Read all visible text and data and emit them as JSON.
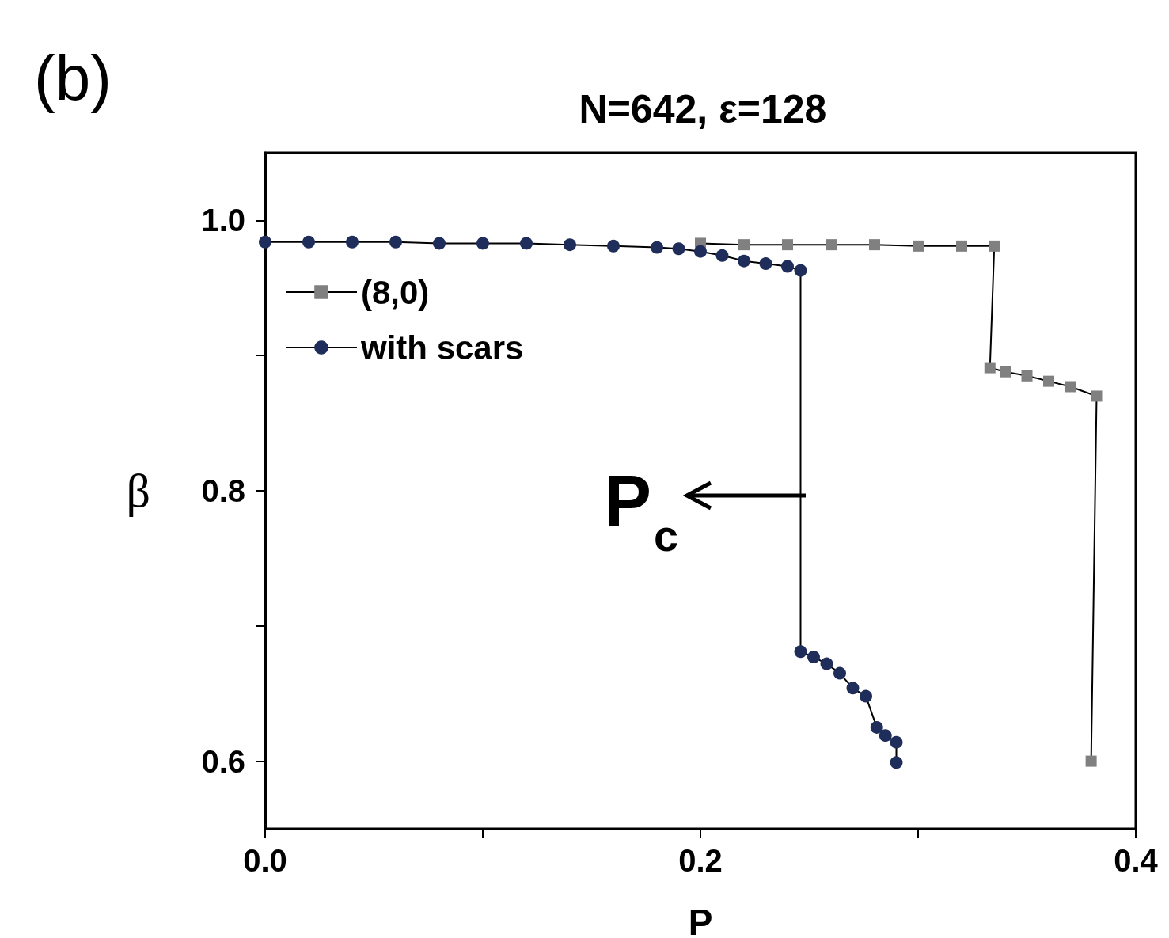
{
  "chart_data": {
    "type": "line",
    "title": "N=642, ε=128",
    "xlabel": "P",
    "ylabel": "β",
    "annotations": [
      "(b)",
      "P$_{c}$"
    ],
    "xlim": [
      0.0,
      0.4
    ],
    "xticks": [
      {
        "value": 0,
        "label": "0.0"
      },
      {
        "value": 0.1,
        "label": null
      },
      0.2,
      {
        "value": 0.3,
        "label": null
      },
      {
        "value": 0.4,
        "label": "0.4"
      }
    ],
    "ylim": [
      0.55,
      1.05
    ],
    "yticks": [
      0.6,
      {
        "value": 0.7,
        "label": null
      },
      0.8,
      {
        "value": 0.9,
        "label": null
      },
      {
        "value": 1,
        "label": "1.0"
      }
    ],
    "legend": "top left",
    "grid": false,
    "series": [
      {
        "name": "(8,0)",
        "color": "#808080",
        "marker": "square",
        "x": [
          0.2,
          0.22,
          0.24,
          0.26,
          0.28,
          0.3,
          0.32,
          0.335,
          0.333,
          0.34,
          0.35,
          0.36,
          0.37,
          0.382,
          0.3795
        ],
        "values": [
          0.983,
          0.982,
          0.982,
          0.982,
          0.982,
          0.981,
          0.981,
          0.981,
          0.891,
          0.888,
          0.885,
          0.881,
          0.877,
          0.87,
          0.6
        ]
      },
      {
        "name": "with scars",
        "color": "#1f2d5a",
        "marker": "circle",
        "x": [
          0,
          0.02,
          0.04,
          0.06,
          0.08,
          0.1,
          0.12,
          0.14,
          0.16,
          0.18,
          0.19,
          0.2,
          0.21,
          0.22,
          0.23,
          0.24,
          0.246,
          0.246,
          0.252,
          0.258,
          0.264,
          0.27,
          0.276,
          0.281,
          0.285,
          0.29,
          0.29
        ],
        "values": [
          0.984,
          0.984,
          0.984,
          0.984,
          0.983,
          0.983,
          0.983,
          0.982,
          0.981,
          0.98,
          0.979,
          0.977,
          0.974,
          0.97,
          0.968,
          0.966,
          0.963,
          0.681,
          0.677,
          0.672,
          0.665,
          0.654,
          0.648,
          0.625,
          0.619,
          0.614,
          0.599
        ]
      }
    ]
  }
}
